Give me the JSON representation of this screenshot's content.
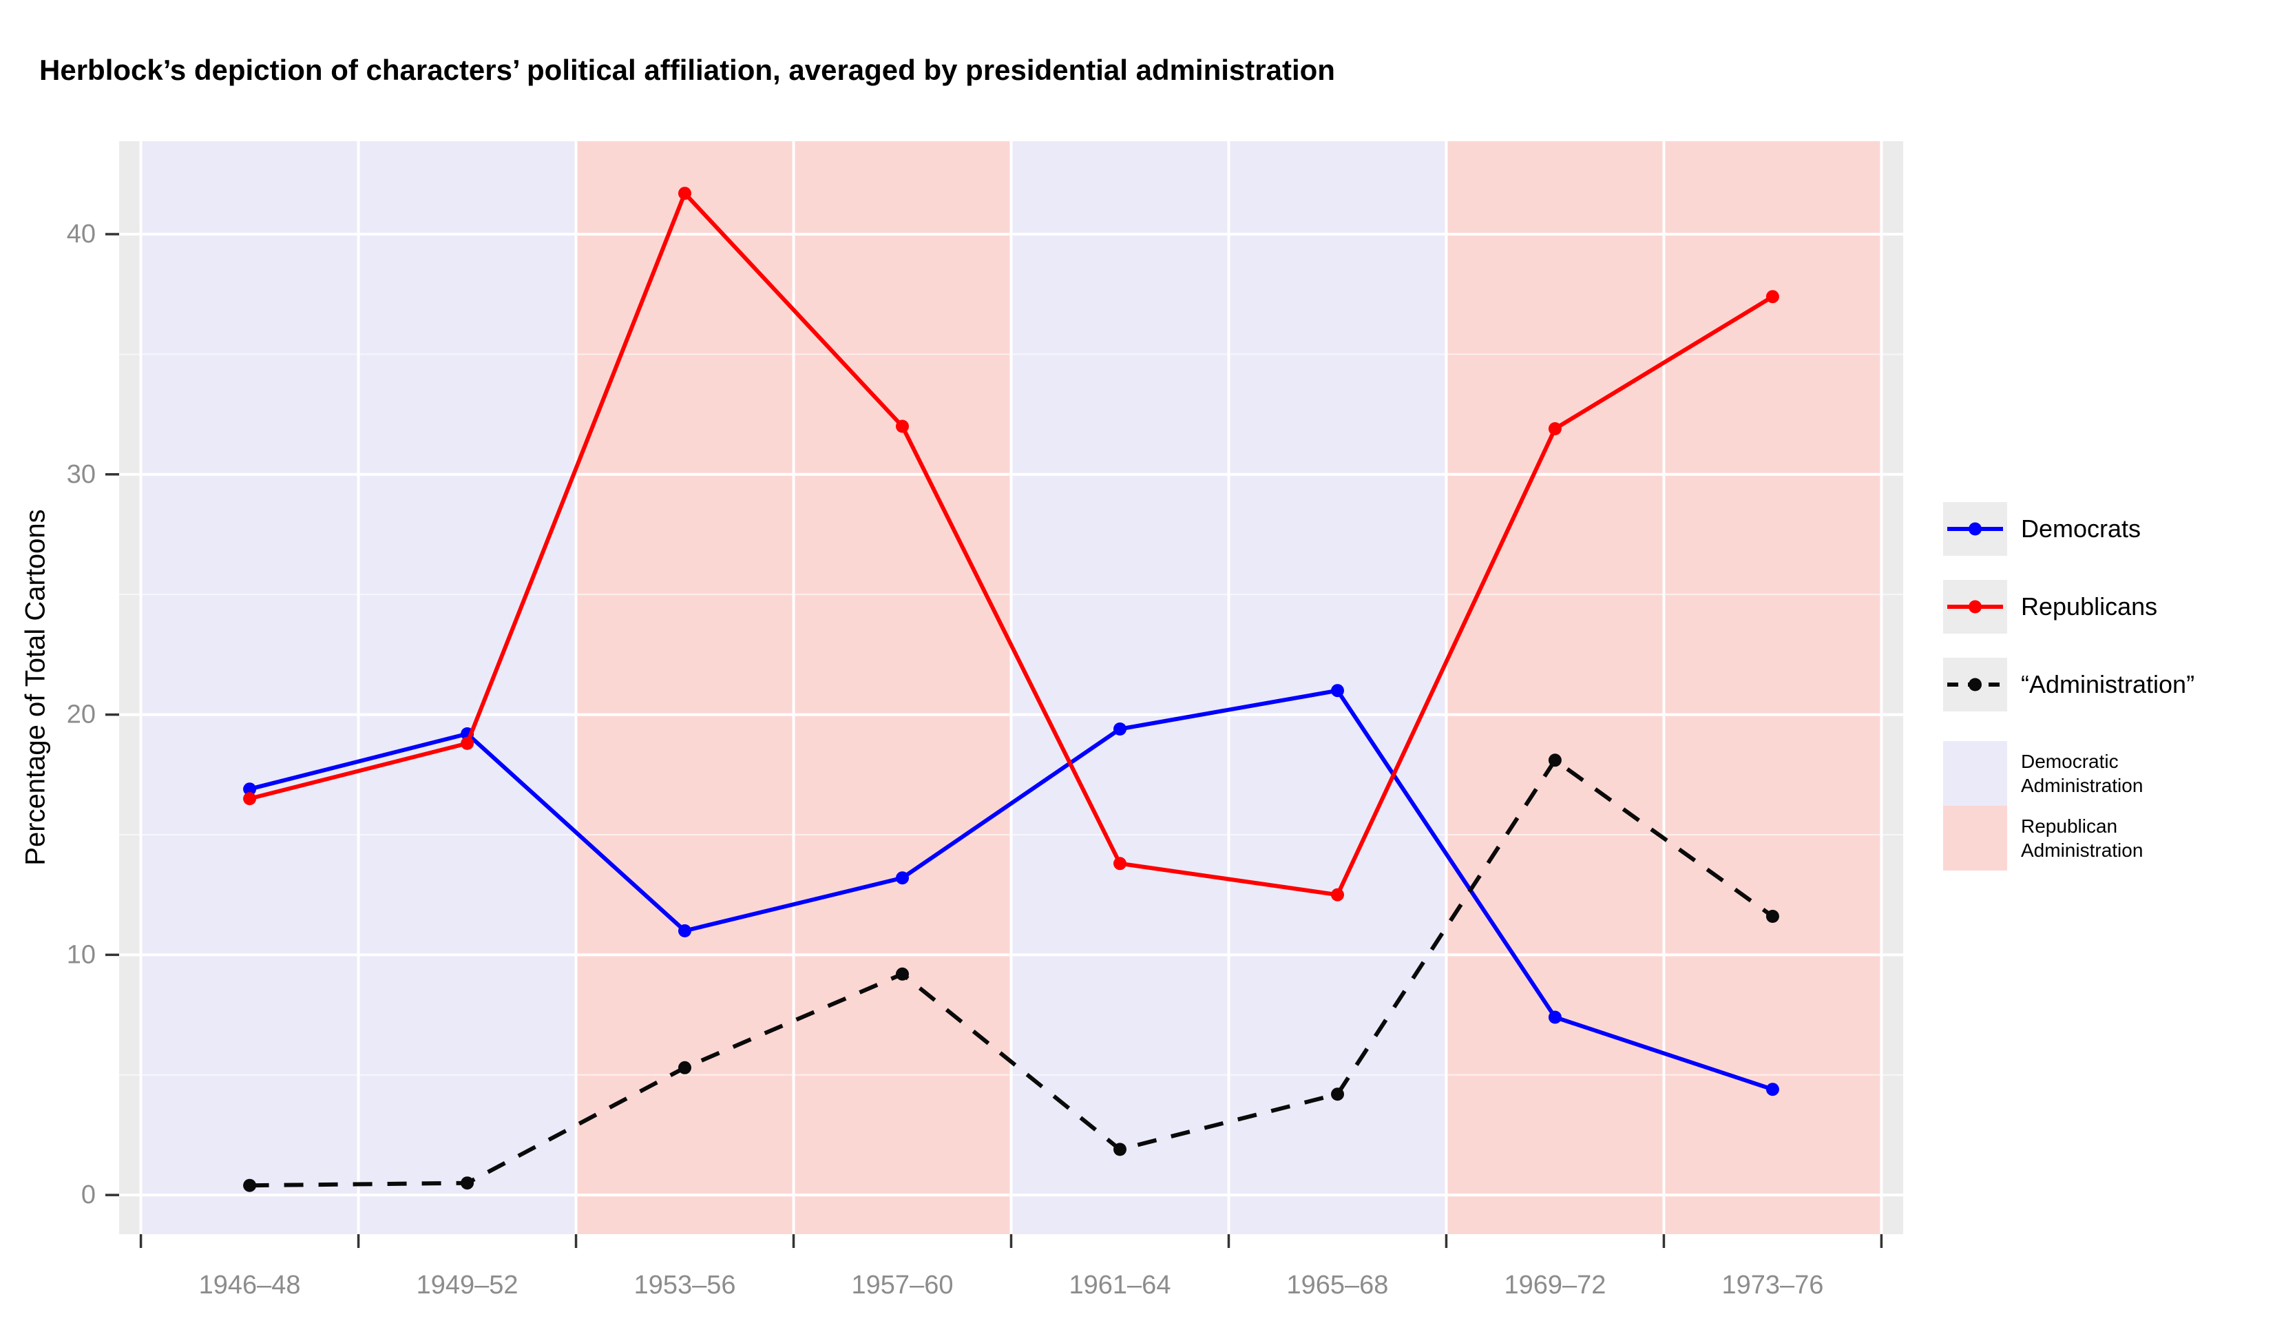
{
  "title": "Herblock’s depiction of characters’ political affiliation, averaged by presidential administration",
  "y_axis": {
    "label": "Percentage of Total Cartoons",
    "ticks": [
      "0",
      "10",
      "20",
      "30",
      "40"
    ]
  },
  "x_axis": {
    "categories": [
      "1946–48",
      "1949–52",
      "1953–56",
      "1957–60",
      "1961–64",
      "1965–68",
      "1969–72",
      "1973–76"
    ]
  },
  "legend": {
    "series": [
      {
        "label": "Democrats",
        "color": "#0000FF",
        "style": "solid"
      },
      {
        "label": "Republicans",
        "color": "#FF0000",
        "style": "solid"
      },
      {
        "label": "“Administration”",
        "color": "#0A0A0A",
        "style": "dashed"
      }
    ],
    "fills": [
      {
        "label_line1": "Democratic",
        "label_line2": "Administration",
        "color": "#EBEAF8"
      },
      {
        "label_line1": "Republican",
        "label_line2": "Administration",
        "color": "#FBD7D3"
      }
    ]
  },
  "chart_data": {
    "type": "line",
    "title": "Herblock’s depiction of characters’ political affiliation, averaged by presidential administration",
    "categories": [
      "1946–48",
      "1949–52",
      "1953–56",
      "1957–60",
      "1961–64",
      "1965–68",
      "1969–72",
      "1973–76"
    ],
    "series": [
      {
        "name": "Democrats",
        "color": "#0000FF",
        "style": "solid",
        "values": [
          16.9,
          19.2,
          11.0,
          13.2,
          19.4,
          21.0,
          7.4,
          4.4
        ]
      },
      {
        "name": "Republicans",
        "color": "#FF0000",
        "style": "solid",
        "values": [
          16.5,
          18.8,
          41.7,
          32.0,
          13.8,
          12.5,
          31.9,
          37.4
        ]
      },
      {
        "name": "“Administration”",
        "color": "#0A0A0A",
        "style": "dashed",
        "values": [
          0.4,
          0.5,
          5.3,
          9.2,
          1.9,
          4.2,
          18.1,
          11.6
        ]
      }
    ],
    "background_bands": [
      {
        "party": "Democratic Administration",
        "from_category": 1,
        "to_category": 2,
        "color": "#EBEAF8"
      },
      {
        "party": "Republican Administration",
        "from_category": 3,
        "to_category": 4,
        "color": "#FBD7D3"
      },
      {
        "party": "Democratic Administration",
        "from_category": 5,
        "to_category": 6,
        "color": "#EBEAF8"
      },
      {
        "party": "Republican Administration",
        "from_category": 7,
        "to_category": 8,
        "color": "#FBD7D3"
      }
    ],
    "xlabel": "",
    "ylabel": "Percentage of Total Cartoons",
    "yticks": [
      0,
      10,
      20,
      30,
      40
    ],
    "yticks_minor": [
      5,
      15,
      25,
      35
    ],
    "ylim": [
      -1.63,
      43.87
    ],
    "grid": true,
    "legend_position": "right"
  },
  "colors": {
    "panel_default": "#EBEBEB",
    "grid_major": "#FFFFFF",
    "grid_minor": "#FFFFFF",
    "tick_mark": "#333333",
    "tick_label": "#8C8C8C",
    "legend_key_bg": "#ECECEC",
    "page_bg": "#FFFFFF"
  }
}
